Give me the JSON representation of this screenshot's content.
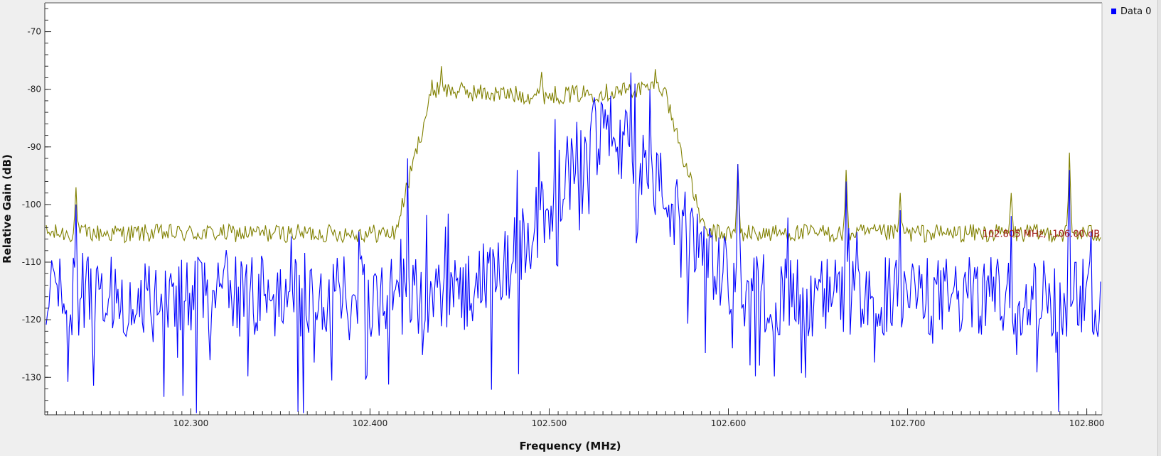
{
  "chart_data": {
    "type": "line",
    "xlabel": "Frequency (MHz)",
    "ylabel": "Relative Gain (dB)",
    "xlim": [
      102.2185,
      102.8085
    ],
    "ylim": [
      -136.5,
      -65
    ],
    "x_major_ticks": [
      102.3,
      102.4,
      102.5,
      102.6,
      102.7,
      102.8
    ],
    "x_tick_labels": [
      "102.300",
      "102.400",
      "102.500",
      "102.600",
      "102.700",
      "102.800"
    ],
    "y_major_ticks": [
      -70,
      -80,
      -90,
      -100,
      -110,
      -120,
      -130
    ],
    "y_tick_labels": [
      "-70",
      "-80",
      "-90",
      "-100",
      "-110",
      "-120",
      "-130"
    ],
    "grid": false,
    "legend": {
      "position": "top-right",
      "entries": [
        "Data 0"
      ]
    },
    "series": [
      {
        "name": "Data 0",
        "color": "#0000ff",
        "noise_floor_db": -116,
        "peaks": [
          {
            "x": 102.236,
            "y": -100
          },
          {
            "x": 102.36,
            "y": -136
          },
          {
            "x": 102.421,
            "y": -92
          },
          {
            "x": 102.482,
            "y": -94
          },
          {
            "x": 102.532,
            "y": -87
          },
          {
            "x": 102.548,
            "y": -79
          },
          {
            "x": 102.556,
            "y": -80
          },
          {
            "x": 102.605,
            "y": -93
          },
          {
            "x": 102.666,
            "y": -96
          },
          {
            "x": 102.696,
            "y": -101
          },
          {
            "x": 102.758,
            "y": -102
          },
          {
            "x": 102.784,
            "y": -136
          },
          {
            "x": 102.79,
            "y": -94
          }
        ]
      },
      {
        "color": "#808000",
        "noise_floor_db": -105,
        "bandwidth_mhz": [
          102.422,
          102.565
        ],
        "in_band_db": -81,
        "peaks": [
          {
            "x": 102.236,
            "y": -97
          },
          {
            "x": 102.44,
            "y": -76
          },
          {
            "x": 102.496,
            "y": -77
          },
          {
            "x": 102.559,
            "y": -76.5
          },
          {
            "x": 102.605,
            "y": -93
          },
          {
            "x": 102.666,
            "y": -94
          },
          {
            "x": 102.696,
            "y": -98
          },
          {
            "x": 102.758,
            "y": -98
          },
          {
            "x": 102.79,
            "y": -91
          }
        ]
      }
    ],
    "marker": {
      "x": 102.805,
      "y": -106.0,
      "label": "102.805 MHz, -106.00 dB",
      "color": "#a01818"
    }
  }
}
